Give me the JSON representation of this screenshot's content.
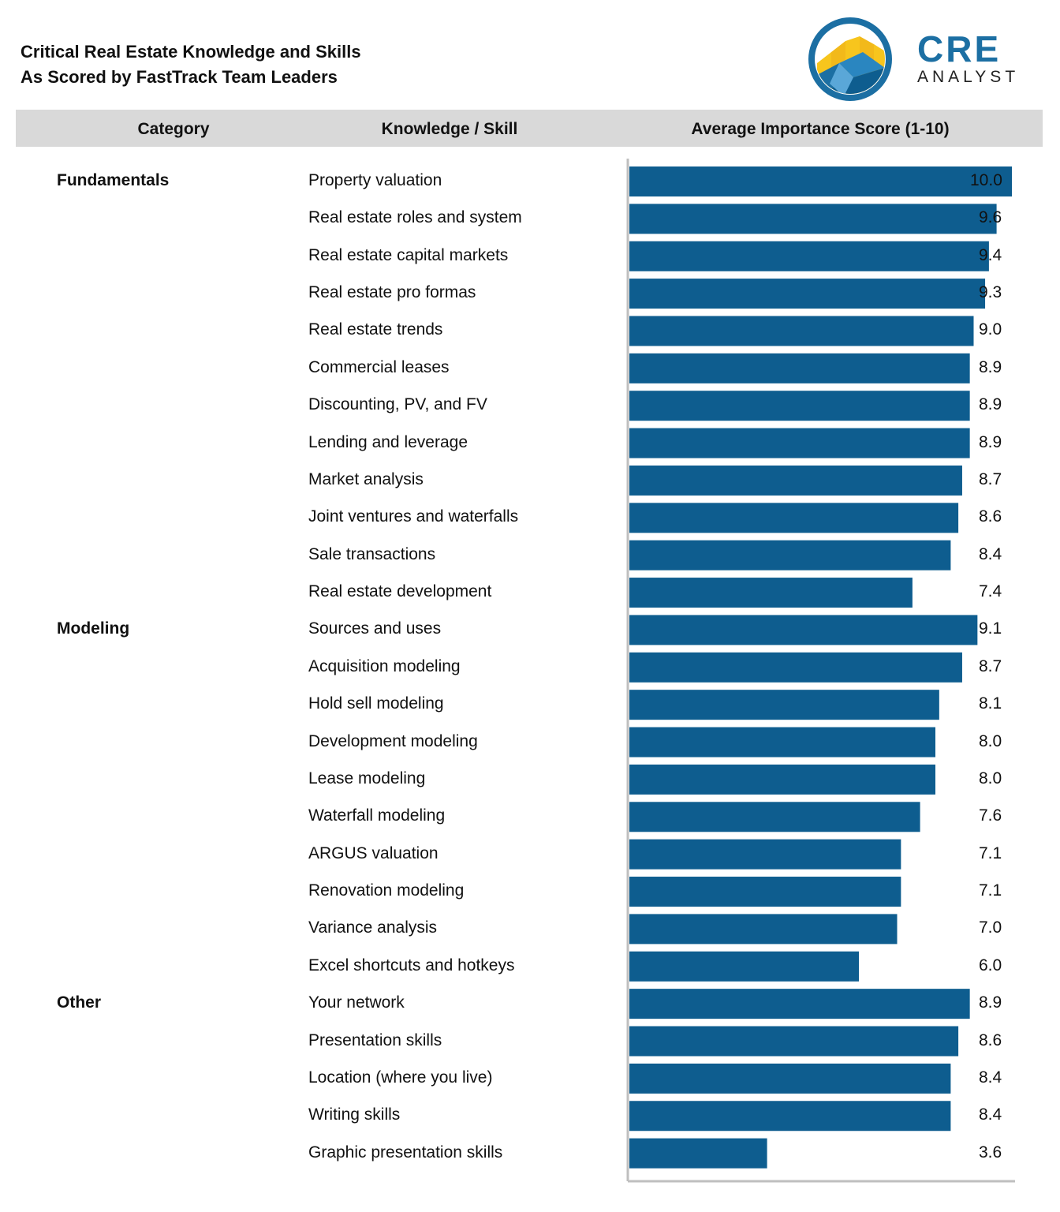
{
  "title": {
    "line1": "Critical Real Estate Knowledge and Skills",
    "line2": "As Scored by FastTrack Team Leaders"
  },
  "logo": {
    "brand": "CRE",
    "sub": "ANALYST"
  },
  "header": {
    "category": "Category",
    "skill": "Knowledge / Skill",
    "score": "Average Importance Score (1-10)"
  },
  "colors": {
    "bar": "#0e5d8f",
    "header_bg": "#d9d9d9",
    "axis": "#bfbfbf",
    "logo_blue": "#1c6fa3",
    "logo_yellow": "#f7c51d"
  },
  "chart_data": {
    "type": "bar",
    "orientation": "horizontal",
    "xlim": [
      0,
      10
    ],
    "groups": [
      {
        "category": "Fundamentals",
        "start": 0
      },
      {
        "category": "Modeling",
        "start": 12
      },
      {
        "category": "Other",
        "start": 22
      }
    ],
    "categories": [
      "Property valuation",
      "Real estate roles and system",
      "Real estate capital markets",
      "Real estate pro formas",
      "Real estate trends",
      "Commercial leases",
      "Discounting, PV, and FV",
      "Lending and leverage",
      "Market analysis",
      "Joint ventures and waterfalls",
      "Sale transactions",
      "Real estate development",
      "Sources and uses",
      "Acquisition modeling",
      "Hold sell modeling",
      "Development modeling",
      "Lease modeling",
      "Waterfall modeling",
      "ARGUS valuation",
      "Renovation modeling",
      "Variance analysis",
      "Excel shortcuts and hotkeys",
      "Your network",
      "Presentation skills",
      "Location (where you live)",
      "Writing skills",
      "Graphic presentation skills"
    ],
    "values": [
      10.0,
      9.6,
      9.4,
      9.3,
      9.0,
      8.9,
      8.9,
      8.9,
      8.7,
      8.6,
      8.4,
      7.4,
      9.1,
      8.7,
      8.1,
      8.0,
      8.0,
      7.6,
      7.1,
      7.1,
      7.0,
      6.0,
      8.9,
      8.6,
      8.4,
      8.4,
      3.6
    ],
    "labels": [
      "10.0",
      "9.6",
      "9.4",
      "9.3",
      "9.0",
      "8.9",
      "8.9",
      "8.9",
      "8.7",
      "8.6",
      "8.4",
      "7.4",
      "9.1",
      "8.7",
      "8.1",
      "8.0",
      "8.0",
      "7.6",
      "7.1",
      "7.1",
      "7.0",
      "6.0",
      "8.9",
      "8.6",
      "8.4",
      "8.4",
      "3.6"
    ]
  }
}
